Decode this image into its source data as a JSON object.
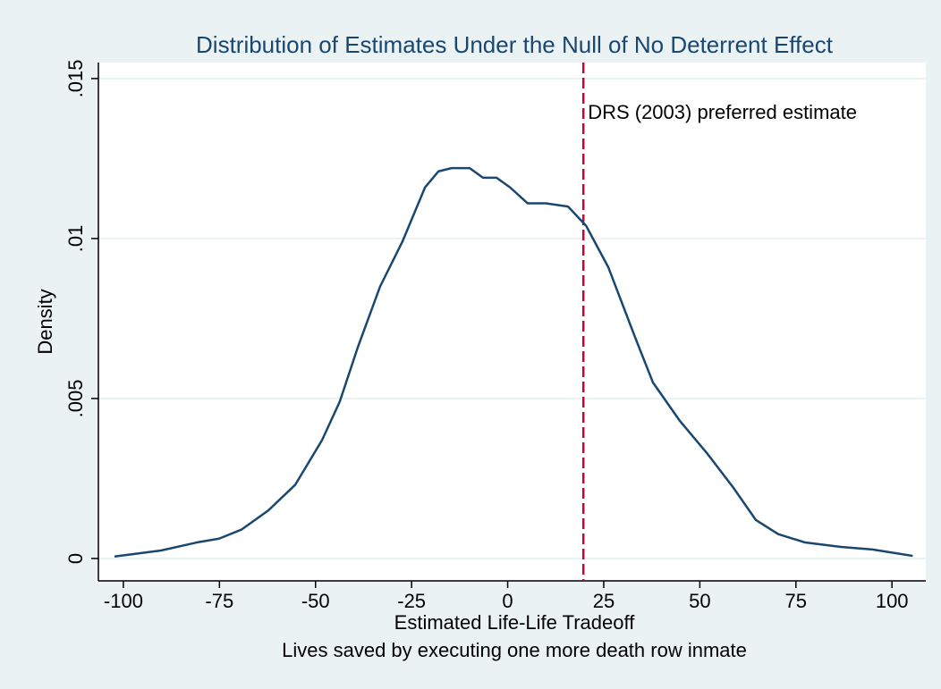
{
  "chart_data": {
    "type": "line",
    "title": "Distribution of Estimates Under the Null of No Deterrent Effect",
    "xlabel": [
      "Estimated Life-Life Tradeoff",
      "Lives saved by executing one more death row inmate"
    ],
    "ylabel": "Density",
    "x": [
      -102.3,
      -90.2,
      -80.9,
      -75.1,
      -69.3,
      -62.3,
      -55.3,
      -48.3,
      -43.7,
      -39.0,
      -33.2,
      -27.4,
      -21.5,
      -18.0,
      -14.6,
      -9.9,
      -6.4,
      -2.9,
      0.6,
      5.2,
      9.9,
      15.7,
      20.4,
      26.2,
      33.2,
      37.8,
      44.8,
      51.8,
      58.8,
      64.6,
      70.4,
      77.4,
      86.7,
      94.9,
      105.4
    ],
    "values": [
      6e-05,
      0.00025,
      0.0005,
      0.00062,
      0.0009,
      0.0015,
      0.0023,
      0.0037,
      0.0049,
      0.0066,
      0.0085,
      0.0099,
      0.0116,
      0.0121,
      0.0122,
      0.0122,
      0.0119,
      0.0119,
      0.0116,
      0.0111,
      0.0111,
      0.011,
      0.0104,
      0.0091,
      0.0069,
      0.0055,
      0.0043,
      0.0033,
      0.0022,
      0.0012,
      0.00076,
      0.0005,
      0.00036,
      0.00028,
      8e-05
    ],
    "color": "#1a476f",
    "xlim": [
      -106.5,
      108.8
    ],
    "xticks": [
      -100,
      -75,
      -50,
      -25,
      0,
      25,
      50,
      75,
      100
    ],
    "ylim": [
      -0.0007,
      0.0155
    ],
    "yticks": [
      0,
      {
        "value": 0.005,
        "label": ".005"
      },
      {
        "value": 0.01,
        "label": ".01"
      },
      {
        "value": 0.015,
        "label": ".015"
      }
    ],
    "grid": true,
    "annotations": [
      {
        "x": 19.7,
        "text": "DRS (2003) preferred estimate",
        "color": "#c10534"
      }
    ]
  }
}
